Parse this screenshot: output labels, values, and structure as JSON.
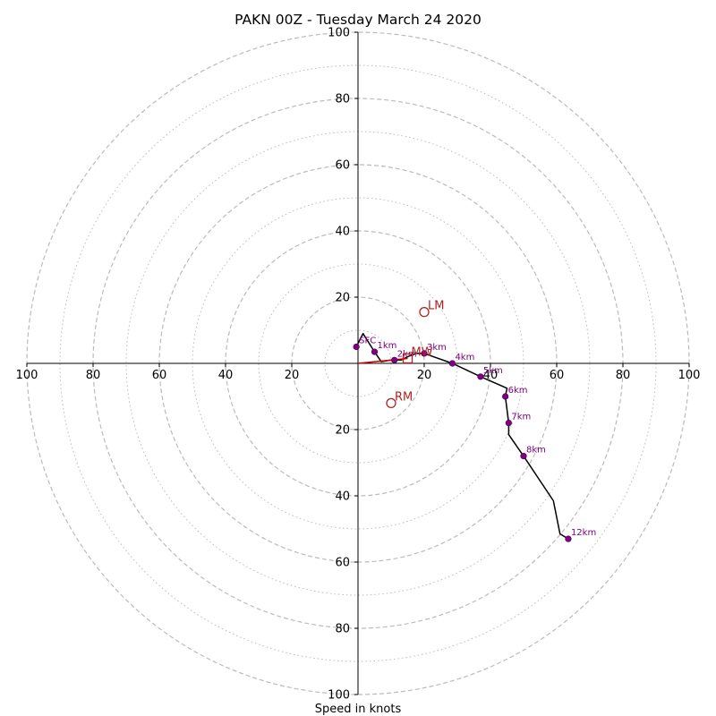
{
  "chart_data": {
    "type": "scatter",
    "subtype": "hodograph",
    "title": "PAKN 00Z - Tuesday March 24 2020",
    "xlabel": "Speed in knots",
    "ylabel": "",
    "xlim": [
      -100,
      100
    ],
    "ylim": [
      -100,
      100
    ],
    "rings_dashed": [
      20,
      40,
      60,
      80,
      100
    ],
    "rings_dotted": [
      10,
      30,
      50,
      70,
      90
    ],
    "ticks": {
      "left": [
        "100",
        "80",
        "60",
        "40",
        "20"
      ],
      "right": [
        "20",
        "40",
        "60",
        "80",
        "100"
      ],
      "top": [
        "20",
        "40",
        "60",
        "80",
        "100"
      ],
      "bottom": [
        "20",
        "40",
        "60",
        "80",
        "100"
      ]
    },
    "tick_values": [
      20,
      40,
      60,
      80,
      100
    ],
    "colors": {
      "profile_line": "#000000",
      "height_marker": "#800080",
      "height_label": "#800080",
      "storm_motion": "#b22222",
      "shear_vector": "#cc0000",
      "grid": "#bbbbbb",
      "axis": "#000000"
    },
    "wind_profile": {
      "u": [
        -0.5,
        1.5,
        5,
        7,
        10,
        11,
        13,
        15,
        17.5,
        20,
        28.5,
        37,
        45,
        44.5,
        45.5,
        45.5,
        50,
        59,
        61,
        63.5
      ],
      "v": [
        5,
        9,
        3.5,
        0.5,
        1,
        1,
        1,
        2,
        3,
        3,
        0,
        -4,
        -7.5,
        -10,
        -18,
        -21.5,
        -28,
        -41.5,
        -51.5,
        -53
      ]
    },
    "heights": [
      {
        "label": "SFC",
        "u": -0.5,
        "v": 5
      },
      {
        "label": "1km",
        "u": 5,
        "v": 3.5
      },
      {
        "label": "2km",
        "u": 11,
        "v": 1
      },
      {
        "label": "3km",
        "u": 20,
        "v": 3
      },
      {
        "label": "4km",
        "u": 28.5,
        "v": 0
      },
      {
        "label": "5km",
        "u": 37,
        "v": -4
      },
      {
        "label": "6km",
        "u": 44.5,
        "v": -10
      },
      {
        "label": "7km",
        "u": 45.5,
        "v": -18
      },
      {
        "label": "8km",
        "u": 50,
        "v": -28
      },
      {
        "label": "12km",
        "u": 63.5,
        "v": -53
      }
    ],
    "storm_motions": [
      {
        "label": "LM",
        "u": 20,
        "v": 15.5,
        "marker": "circle"
      },
      {
        "label": "RM",
        "u": 10,
        "v": -12,
        "marker": "circle"
      },
      {
        "label": "MW",
        "u": 15,
        "v": 1.5,
        "marker": "square"
      }
    ],
    "shear_vector": {
      "from": [
        0,
        0
      ],
      "to": [
        15,
        1.5
      ]
    }
  }
}
